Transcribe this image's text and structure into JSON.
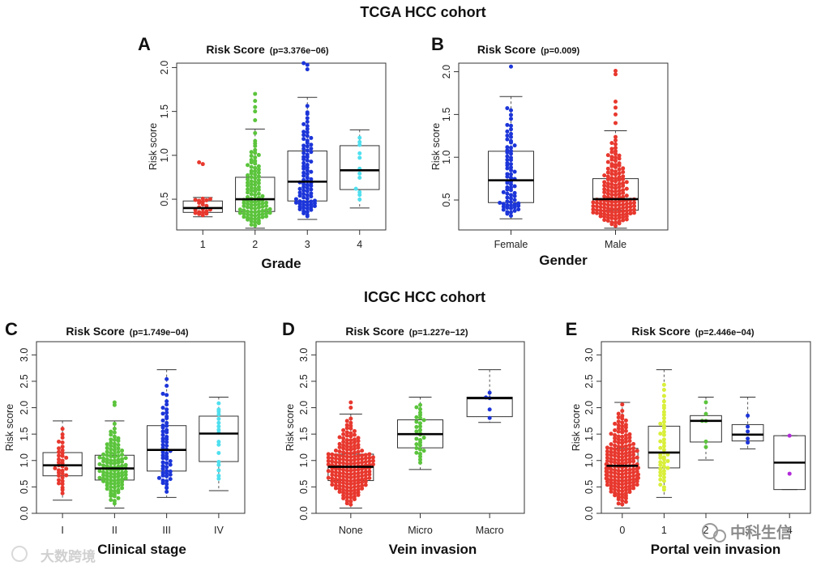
{
  "cohort_titles": [
    "TCGA HCC cohort",
    "ICGC HCC cohort"
  ],
  "watermark_right": "中科生信",
  "watermark_left": "大数跨境",
  "colors": {
    "red": "#e8382e",
    "green": "#5bc43c",
    "blue": "#1c35d9",
    "cyan": "#4fe0ef",
    "yellowgreen": "#d9ef3a",
    "purple": "#b12ad9"
  },
  "chart_data": [
    {
      "panel": "A",
      "type": "box-swarm",
      "title": "Risk Score",
      "pvalue": "(p=3.376e−06)",
      "xlabel": "Grade",
      "ylabel": "Risk score",
      "ylim": [
        0.15,
        2.05
      ],
      "yticks": [
        "0.5",
        "1.0",
        "1.5",
        "2.0"
      ],
      "categories": [
        "1",
        "2",
        "3",
        "4"
      ],
      "series": [
        {
          "category": "1",
          "color": "red",
          "n": 22,
          "whisker_low": 0.3,
          "q1": 0.35,
          "median": 0.4,
          "q3": 0.48,
          "whisker_high": 0.52,
          "outliers": [
            0.9,
            0.92
          ]
        },
        {
          "category": "2",
          "color": "green",
          "n": 110,
          "whisker_low": 0.17,
          "q1": 0.36,
          "median": 0.5,
          "q3": 0.75,
          "whisker_high": 1.3,
          "outliers": [
            1.4,
            1.5,
            1.55,
            1.62,
            1.7
          ]
        },
        {
          "category": "3",
          "color": "blue",
          "n": 90,
          "whisker_low": 0.27,
          "q1": 0.48,
          "median": 0.7,
          "q3": 1.05,
          "whisker_high": 1.66,
          "outliers": [
            1.98,
            2.03,
            2.05
          ]
        },
        {
          "category": "4",
          "color": "cyan",
          "n": 12,
          "whisker_low": 0.4,
          "q1": 0.61,
          "median": 0.83,
          "q3": 1.11,
          "whisker_high": 1.29,
          "outliers": []
        }
      ]
    },
    {
      "panel": "B",
      "type": "box-swarm",
      "title": "Risk Score",
      "pvalue": "(p=0.009)",
      "xlabel": "Gender",
      "ylabel": "Risk score",
      "ylim": [
        0.15,
        2.1
      ],
      "yticks": [
        "0.5",
        "1.0",
        "1.5",
        "2.0"
      ],
      "categories": [
        "Female",
        "Male"
      ],
      "series": [
        {
          "category": "Female",
          "color": "blue",
          "n": 75,
          "whisker_low": 0.28,
          "q1": 0.47,
          "median": 0.73,
          "q3": 1.07,
          "whisker_high": 1.71,
          "outliers": [
            2.06
          ]
        },
        {
          "category": "Male",
          "color": "red",
          "n": 160,
          "whisker_low": 0.17,
          "q1": 0.38,
          "median": 0.51,
          "q3": 0.75,
          "whisker_high": 1.31,
          "outliers": [
            1.4,
            1.5,
            1.58,
            1.65,
            1.97,
            2.01
          ]
        }
      ]
    },
    {
      "panel": "C",
      "type": "box-swarm",
      "title": "Risk Score",
      "pvalue": "(p=1.749e−04)",
      "xlabel": "Clinical stage",
      "ylabel": "Risk score",
      "ylim": [
        0,
        3.25
      ],
      "yticks": [
        "0.0",
        "0.5",
        "1.0",
        "1.5",
        "2.0",
        "2.5",
        "3.0"
      ],
      "categories": [
        "I",
        "II",
        "III",
        "IV"
      ],
      "series": [
        {
          "category": "I",
          "color": "red",
          "n": 35,
          "whisker_low": 0.25,
          "q1": 0.71,
          "median": 0.91,
          "q3": 1.15,
          "whisker_high": 1.75,
          "outliers": []
        },
        {
          "category": "II",
          "color": "green",
          "n": 110,
          "whisker_low": 0.1,
          "q1": 0.63,
          "median": 0.85,
          "q3": 1.1,
          "whisker_high": 1.75,
          "outliers": [
            2.05,
            2.1
          ]
        },
        {
          "category": "III",
          "color": "blue",
          "n": 60,
          "whisker_low": 0.3,
          "q1": 0.8,
          "median": 1.2,
          "q3": 1.66,
          "whisker_high": 2.72,
          "outliers": []
        },
        {
          "category": "IV",
          "color": "cyan",
          "n": 17,
          "whisker_low": 0.43,
          "q1": 0.98,
          "median": 1.51,
          "q3": 1.84,
          "whisker_high": 2.2,
          "outliers": []
        }
      ]
    },
    {
      "panel": "D",
      "type": "box-swarm",
      "title": "Risk Score",
      "pvalue": "(p=1.227e−12)",
      "xlabel": "Vein invasion",
      "ylabel": "Risk score",
      "ylim": [
        0,
        3.25
      ],
      "yticks": [
        "0.0",
        "0.5",
        "1.0",
        "1.5",
        "2.0",
        "2.5",
        "3.0"
      ],
      "categories": [
        "None",
        "Micro",
        "Macro"
      ],
      "series": [
        {
          "category": "None",
          "color": "red",
          "n": 190,
          "whisker_low": 0.1,
          "q1": 0.62,
          "median": 0.88,
          "q3": 1.12,
          "whisker_high": 1.88,
          "outliers": [
            2.0,
            2.1
          ]
        },
        {
          "category": "Micro",
          "color": "green",
          "n": 30,
          "whisker_low": 0.83,
          "q1": 1.24,
          "median": 1.5,
          "q3": 1.77,
          "whisker_high": 2.2,
          "outliers": []
        },
        {
          "category": "Macro",
          "color": "blue",
          "n": 5,
          "whisker_low": 1.72,
          "q1": 1.83,
          "median": 2.18,
          "q3": 2.2,
          "whisker_high": 2.72,
          "outliers": []
        }
      ]
    },
    {
      "panel": "E",
      "type": "box-swarm",
      "title": "Risk Score",
      "pvalue": "(p=2.446e−04)",
      "xlabel": "Portal vein invasion",
      "ylabel": "Risk score",
      "ylim": [
        0,
        3.25
      ],
      "yticks": [
        "0.0",
        "0.5",
        "1.0",
        "1.5",
        "2.0",
        "2.5",
        "3.0"
      ],
      "categories": [
        "0",
        "1",
        "2",
        "3",
        "4"
      ],
      "series": [
        {
          "category": "0",
          "color": "red",
          "n": 180,
          "whisker_low": 0.1,
          "q1": 0.63,
          "median": 0.9,
          "q3": 1.23,
          "whisker_high": 2.1,
          "outliers": []
        },
        {
          "category": "1",
          "color": "yellowgreen",
          "n": 45,
          "whisker_low": 0.3,
          "q1": 0.86,
          "median": 1.15,
          "q3": 1.65,
          "whisker_high": 2.72,
          "outliers": []
        },
        {
          "category": "2",
          "color": "green",
          "n": 6,
          "whisker_low": 1.01,
          "q1": 1.35,
          "median": 1.75,
          "q3": 1.85,
          "whisker_high": 2.2,
          "outliers": []
        },
        {
          "category": "3",
          "color": "blue",
          "n": 5,
          "whisker_low": 1.22,
          "q1": 1.37,
          "median": 1.49,
          "q3": 1.68,
          "whisker_high": 2.2,
          "outliers": []
        },
        {
          "category": "4",
          "color": "purple",
          "n": 2,
          "whisker_low": 0.45,
          "q1": 0.45,
          "median": 0.96,
          "q3": 1.47,
          "whisker_high": 1.47,
          "outliers": []
        }
      ]
    }
  ]
}
